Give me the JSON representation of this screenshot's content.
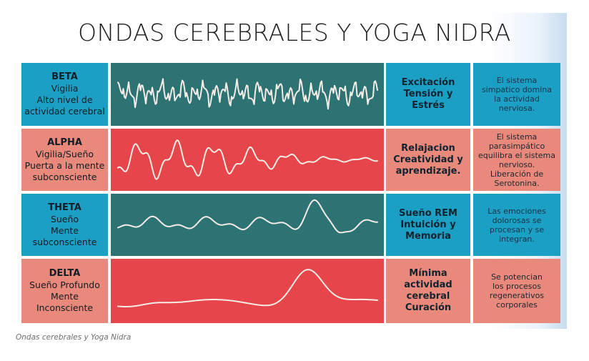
{
  "title": "ONDAS CEREBRALES Y YOGA NIDRA",
  "caption": "Ondas cerebrales y Yoga Nidra",
  "colors": {
    "blue": "#1c9fc4",
    "salmon": "#e9897c",
    "teal_panel": "#2e7374",
    "red_panel": "#e6454b",
    "wave_line": "#f4ece6"
  },
  "rows": [
    {
      "name": "BETA",
      "subtitle_lines": [
        "Vigilia",
        "Alto nivel de",
        "actividad cerebral"
      ],
      "state_lines": [
        "Excitación",
        "Tensión y",
        "Estrés"
      ],
      "desc_lines": [
        "El sistema",
        "simpatico domina",
        "la actividad",
        "nerviosa."
      ]
    },
    {
      "name": "ALPHA",
      "subtitle_lines": [
        "Vigilia/Sueño",
        "Puerta a la mente",
        "subconsciente"
      ],
      "state_lines": [
        "Relajacion",
        "Creatividad y",
        "aprendizaje."
      ],
      "desc_lines": [
        "El sistema",
        "parasimpático",
        "equilibra el sistema",
        "nervioso.",
        "Liberación de",
        "Serotonina."
      ]
    },
    {
      "name": "THETA",
      "subtitle_lines": [
        "Sueño",
        "Mente",
        "subconsciente"
      ],
      "state_lines": [
        "Sueño REM",
        "Intuición y",
        "Memoria"
      ],
      "desc_lines": [
        "Las emociones",
        "dolorosas se",
        "procesan y se",
        "integran."
      ]
    },
    {
      "name": "DELTA",
      "subtitle_lines": [
        "Sueño Profundo",
        "Mente",
        "Inconsciente"
      ],
      "state_lines": [
        "Mínima",
        "actividad",
        "cerebral",
        "Curación"
      ],
      "desc_lines": [
        "Se potencian",
        "los procesos",
        "regenerativos",
        "corporales"
      ]
    }
  ]
}
